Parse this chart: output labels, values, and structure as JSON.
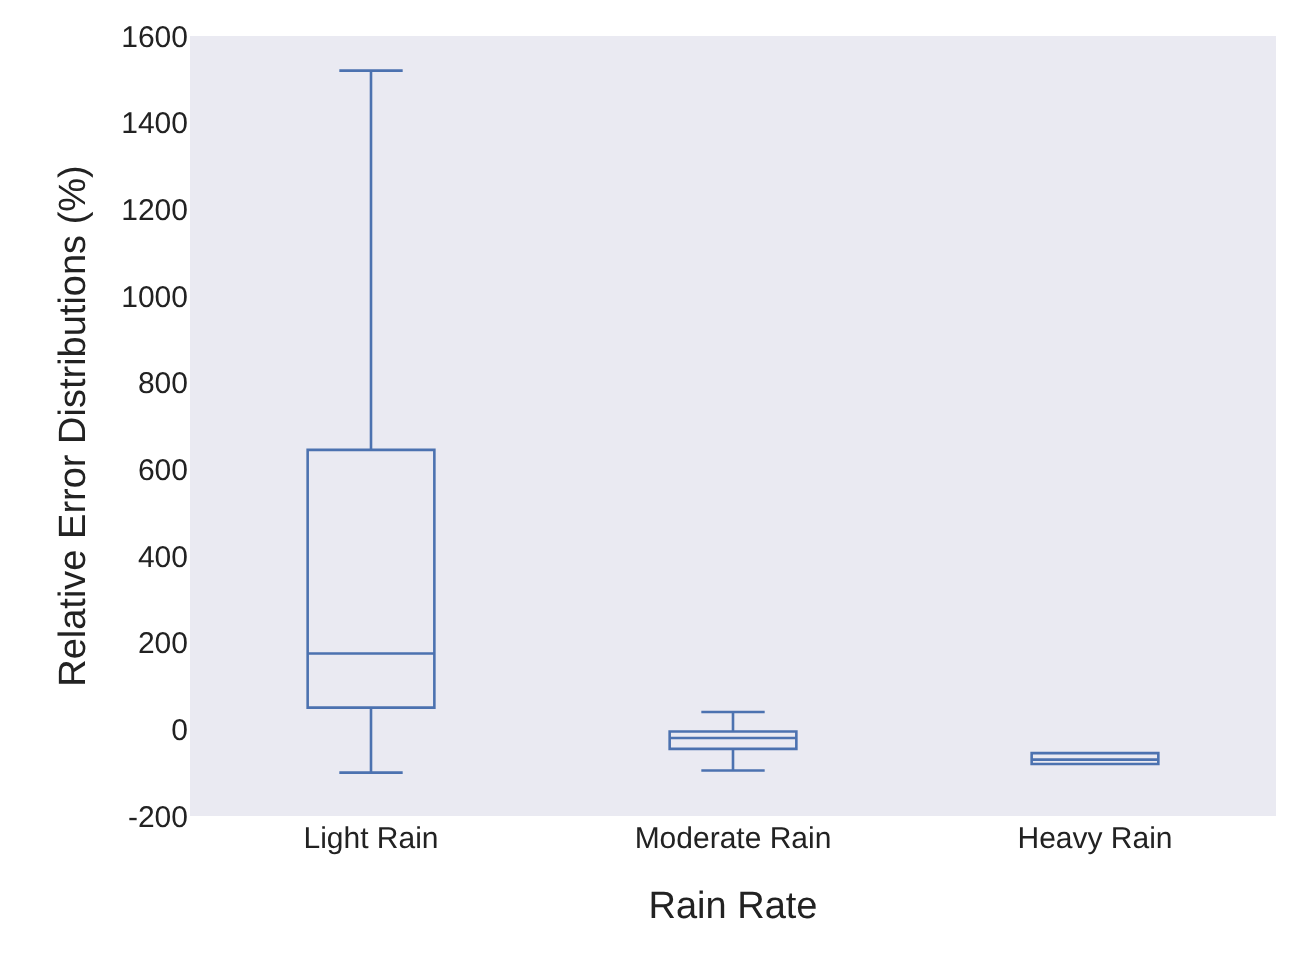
{
  "chart_data": {
    "type": "box",
    "xlabel": "Rain Rate",
    "ylabel": "Relative Error Distributions (%)",
    "categories": [
      "Light Rain",
      "Moderate Rain",
      "Heavy Rain"
    ],
    "boxes": [
      {
        "low": -100,
        "q1": 50,
        "median": 175,
        "q3": 645,
        "high": 1520
      },
      {
        "low": -95,
        "q1": -45,
        "median": -20,
        "q3": -5,
        "high": 40
      },
      {
        "low": -80,
        "q1": -80,
        "median": -70,
        "q3": -55,
        "high": -55
      }
    ],
    "color": "#4c72b0",
    "ylim": [
      -200,
      1600
    ],
    "yticks": [
      -200,
      0,
      200,
      400,
      600,
      800,
      1000,
      1200,
      1400,
      1600
    ],
    "grid": false
  }
}
